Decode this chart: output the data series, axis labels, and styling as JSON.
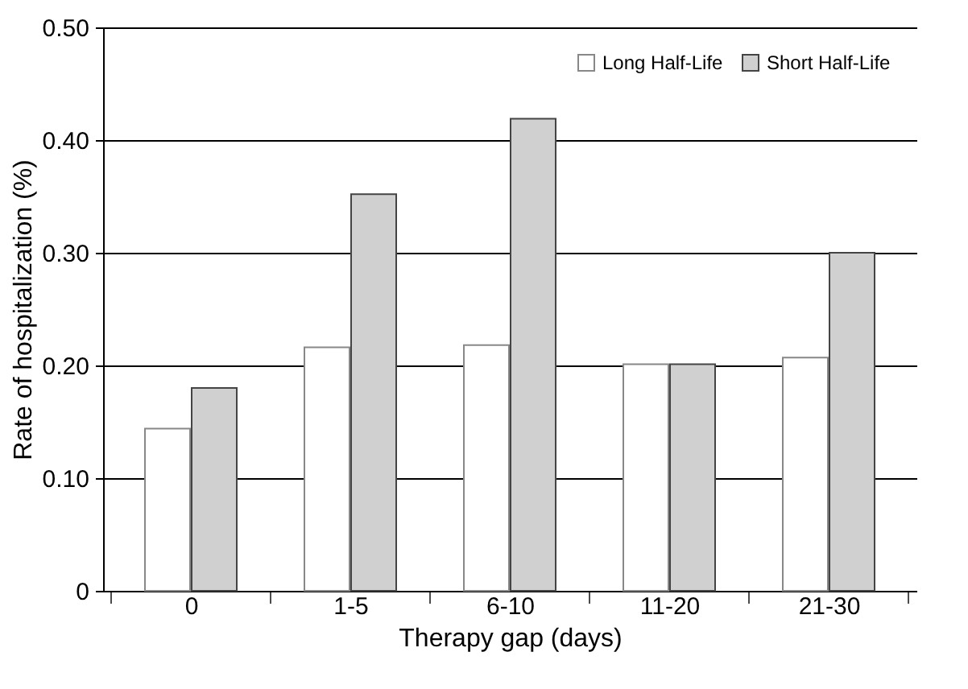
{
  "chart_data": {
    "type": "bar",
    "xlabel": "Therapy gap (days)",
    "ylabel": "Rate of hospitalization (%)",
    "categories": [
      "0",
      "1-5",
      "6-10",
      "11-20",
      "21-30"
    ],
    "series": [
      {
        "name": "Long Half-Life",
        "color": "#ffffff",
        "values": [
          0.144,
          0.216,
          0.218,
          0.201,
          0.207
        ]
      },
      {
        "name": "Short Half-Life",
        "color": "#d0d0d0",
        "values": [
          0.18,
          0.352,
          0.419,
          0.201,
          0.3
        ]
      }
    ],
    "ylim": [
      0,
      0.5
    ],
    "yticks": [
      0,
      {
        "value": 0.1,
        "label": "0.10"
      },
      {
        "value": 0.2,
        "label": "0.20"
      },
      {
        "value": 0.3,
        "label": "0.30"
      },
      {
        "value": 0.4,
        "label": "0.40"
      },
      {
        "value": 0.5,
        "label": "0.50"
      }
    ],
    "grid": "y",
    "legend": "top right"
  }
}
